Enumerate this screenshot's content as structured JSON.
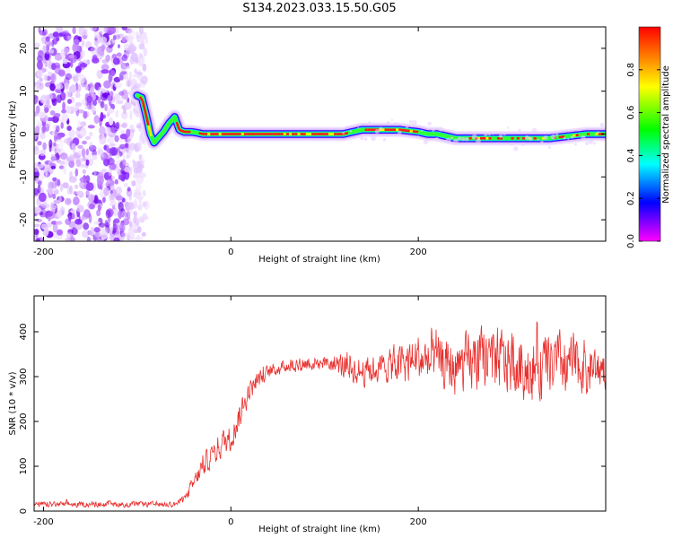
{
  "figure": {
    "title": "S134.2023.033.15.50.G05"
  },
  "chart_data": [
    {
      "type": "heatmap",
      "xlabel": "Height of straight line (km)",
      "ylabel": "Frequency (Hz)",
      "xlim": [
        -210,
        400
      ],
      "ylim": [
        -25,
        25
      ],
      "x_ticks": [
        -200,
        0,
        200
      ],
      "y_ticks": [
        -20,
        -10,
        0,
        10,
        20
      ],
      "grid": false,
      "colorbar": {
        "label": "Normalized spectral amplitude",
        "range": [
          0,
          1
        ],
        "ticks": [
          0.0,
          0.2,
          0.4,
          0.6,
          0.8
        ],
        "tick_labels": [
          "0.0",
          "0.2",
          "0.4",
          "0.6",
          "0.8"
        ],
        "colormap": [
          "#ff00ff",
          "#0000ff",
          "#00ffff",
          "#00ff00",
          "#ffff00",
          "#ff0000"
        ]
      },
      "noise_region_x": [
        -210,
        -90
      ],
      "ridge": {
        "x": [
          -100,
          -95,
          -90,
          -86,
          -82,
          -78,
          -72,
          -66,
          -60,
          -55,
          -50,
          -46,
          -42,
          -36,
          -30,
          -20,
          0,
          40,
          80,
          120,
          140,
          160,
          180,
          200,
          210,
          220,
          240,
          260,
          280,
          300,
          320,
          340,
          360,
          380,
          400
        ],
        "y": [
          9,
          8.5,
          4,
          0,
          -2,
          -1,
          0.5,
          2.5,
          4,
          1,
          0.5,
          0.5,
          0.5,
          0.3,
          0,
          0,
          0,
          0,
          0,
          0,
          1,
          1,
          1,
          0.5,
          0,
          0,
          -1,
          -1,
          -1,
          -1,
          -1,
          -1,
          -0.5,
          0,
          0
        ]
      }
    },
    {
      "type": "line",
      "xlabel": "Height of straight line (km)",
      "ylabel": "SNR (10 * v/v)",
      "xlim": [
        -210,
        400
      ],
      "ylim": [
        0,
        480
      ],
      "x_ticks": [
        -200,
        0,
        200
      ],
      "y_ticks": [
        0,
        100,
        200,
        300,
        400
      ],
      "grid": false,
      "series": [
        {
          "color": "#e8312f",
          "x": [
            -210,
            -150,
            -60,
            -50,
            -40,
            -30,
            -20,
            -10,
            0,
            10,
            20,
            30,
            40,
            60,
            80,
            100,
            120,
            140,
            160,
            180,
            200,
            220,
            240,
            260,
            280,
            300,
            320,
            340,
            360,
            380,
            400
          ],
          "y": [
            15,
            15,
            15,
            25,
            60,
            100,
            125,
            150,
            165,
            215,
            270,
            295,
            310,
            325,
            330,
            330,
            325,
            310,
            320,
            330,
            340,
            330,
            320,
            330,
            340,
            330,
            320,
            325,
            330,
            320,
            320
          ],
          "noise_amplitude": [
            8,
            8,
            8,
            12,
            25,
            30,
            35,
            40,
            40,
            40,
            30,
            25,
            20,
            20,
            25,
            20,
            40,
            40,
            40,
            60,
            70,
            70,
            80,
            90,
            100,
            90,
            100,
            90,
            90,
            80,
            60
          ]
        }
      ]
    }
  ]
}
